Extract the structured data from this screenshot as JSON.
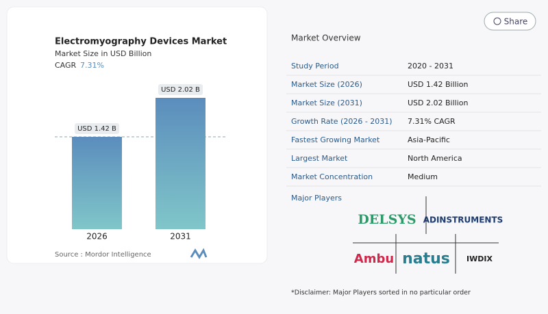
{
  "chart_data": {
    "type": "bar",
    "title": "Electromyography Devices Market",
    "subtitle": "Market Size in USD Billion",
    "cagr_label": "CAGR",
    "cagr": "7.31%",
    "categories": [
      "2026",
      "2031"
    ],
    "values": [
      1.42,
      2.02
    ],
    "value_labels": [
      "USD 1.42 B",
      "USD 2.02 B"
    ],
    "source": "Source :  Mordor Intelligence"
  },
  "share": "Share",
  "overview": {
    "title": "Market Overview",
    "rows": [
      [
        "Study Period",
        "2020 - 2031"
      ],
      [
        "Market Size (2026)",
        "USD 1.42 Billion"
      ],
      [
        "Market Size (2031)",
        "USD 2.02 Billion"
      ],
      [
        "Growth Rate (2026 - 2031)",
        "7.31% CAGR"
      ],
      [
        "Fastest Growing Market",
        "Asia-Pacific"
      ],
      [
        "Largest Market",
        "North America"
      ],
      [
        "Market Concentration",
        "Medium"
      ]
    ]
  },
  "major_players": {
    "title": "Major Players",
    "logos": [
      "DELSYS",
      "ADINSTRUMENTS",
      "Ambu",
      "natus",
      "IWDIX"
    ]
  },
  "disclaimer": "*Disclaimer: Major Players sorted in no particular order"
}
